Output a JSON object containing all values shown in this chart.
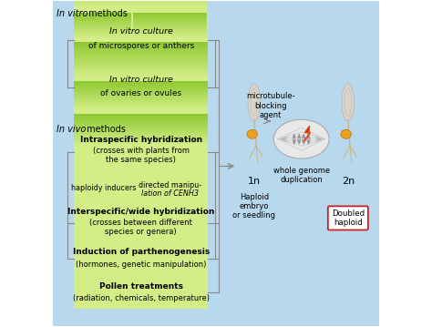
{
  "background_color": "#ffffff",
  "in_vitro_label": "In vitro methods",
  "in_vivo_label": "In vivo methods",
  "blue_color": "#b8d8ee",
  "green_top": "#8fc832",
  "green_bot": "#d4ee88",
  "line_color": "#888888",
  "arrow_color": "#999999",
  "microtubule_text": "microtubule-\nblocking\nagent",
  "wgd_text": "whole genome\nduplication",
  "seedling_stem_color": "#c8b888",
  "seedling_root_color": "#c8b888",
  "seedling_seed_color": "#e8a020",
  "seedling_leaf_color": "#d8d0c0",
  "seedling_leaf_outline": "#b8b0a8",
  "cell_fill": "#e8e8e8",
  "cell_edge": "#aaaaaa",
  "chrom_color": "#888888",
  "spindle_color": "#bbbbbb",
  "lightning_color1": "#cc2200",
  "lightning_color2": "#ee4400",
  "doubled_box_edge": "#cc2222",
  "label_1n": "1n",
  "label_2n": "2n",
  "label_haploid": "Haploid\nembryo\nor seedling",
  "label_doubled": "Doubled\nhaploid"
}
